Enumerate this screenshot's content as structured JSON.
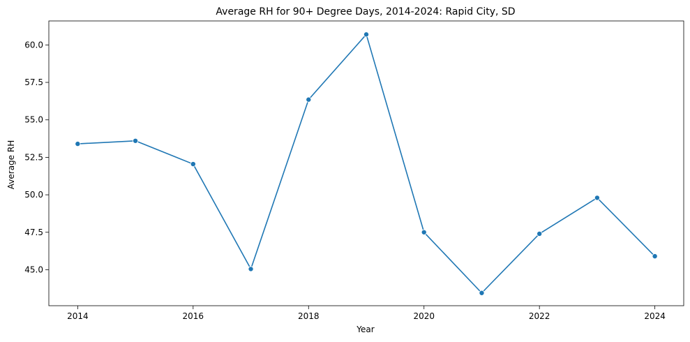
{
  "chart_data": {
    "type": "line",
    "title": "Average RH for 90+ Degree Days, 2014-2024: Rapid City, SD",
    "xlabel": "Year",
    "ylabel": "Average RH",
    "x": [
      2014,
      2015,
      2016,
      2017,
      2018,
      2019,
      2020,
      2021,
      2022,
      2023,
      2024
    ],
    "series": [
      {
        "values": [
          53.4,
          53.6,
          52.05,
          45.05,
          56.35,
          60.7,
          47.5,
          43.45,
          47.4,
          49.8,
          45.9
        ],
        "color": "#1f77b4",
        "marker": "circle"
      }
    ],
    "xlim": [
      2013.5,
      2024.5
    ],
    "ylim": [
      42.6,
      61.6
    ],
    "xticks": [
      2014,
      2016,
      2018,
      2020,
      2022,
      2024
    ],
    "xtick_labels": [
      "2014",
      "2016",
      "2018",
      "2020",
      "2022",
      "2024"
    ],
    "yticks": [
      45.0,
      47.5,
      50.0,
      52.5,
      55.0,
      57.5,
      60.0
    ],
    "ytick_labels": [
      "45.0",
      "47.5",
      "50.0",
      "52.5",
      "55.0",
      "57.5",
      "60.0"
    ],
    "grid": false,
    "legend": "none"
  }
}
